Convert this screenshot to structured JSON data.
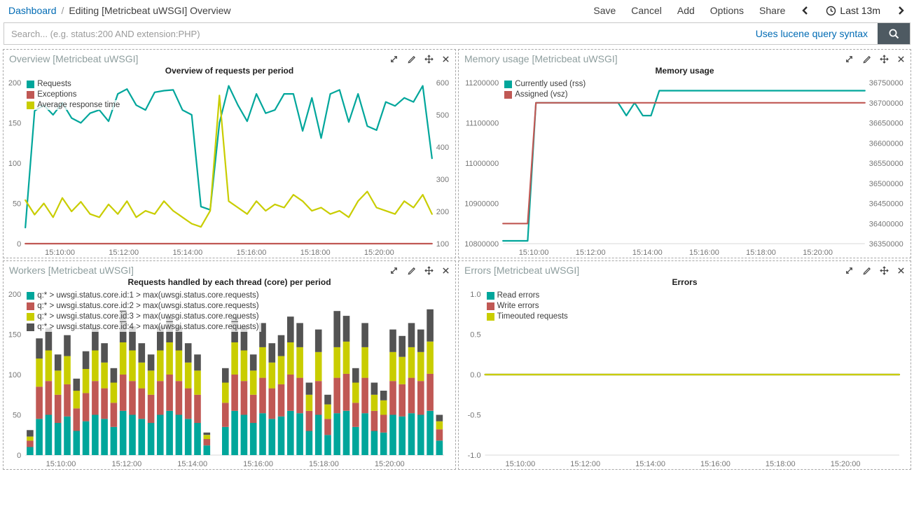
{
  "topbar": {
    "breadcrumb": {
      "root": "Dashboard",
      "separator": "/",
      "current": "Editing [Metricbeat uWSGI] Overview"
    },
    "menu": [
      "Save",
      "Cancel",
      "Add",
      "Options",
      "Share"
    ],
    "time_picker": {
      "label": "Last 13m"
    }
  },
  "search": {
    "placeholder": "Search... (e.g. status:200 AND extension:PHP)",
    "syntax_label": "Uses lucene query syntax"
  },
  "colors": {
    "teal": "#00A69B",
    "red": "#C05854",
    "yellow": "#C9CD00",
    "dark": "#535353",
    "link_blue": "#006BB4",
    "search_button_bg": "#4E5A62",
    "panel_title": "#8e9e9e"
  },
  "chart_data": [
    {
      "panel_title": "Overview [Metricbeat uWSGI]",
      "title": "Overview of requests per period",
      "type": "line",
      "left_axis": {
        "min": 0,
        "max": 200,
        "ticks": [
          {
            "v": 0,
            "label": "0"
          },
          {
            "v": 50,
            "label": "50"
          },
          {
            "v": 100,
            "label": "100"
          },
          {
            "v": 150,
            "label": "150"
          },
          {
            "v": 200,
            "label": "200"
          }
        ]
      },
      "right_axis": {
        "min": 100,
        "max": 600,
        "ticks": [
          {
            "v": 100,
            "label": "100"
          },
          {
            "v": 200,
            "label": "200"
          },
          {
            "v": 300,
            "label": "300"
          },
          {
            "v": 400,
            "label": "400"
          },
          {
            "v": 500,
            "label": "500"
          },
          {
            "v": 600,
            "label": "600"
          }
        ]
      },
      "x_ticks": [
        {
          "pos": 0.085,
          "label": "15:10:00"
        },
        {
          "pos": 0.242,
          "label": "15:12:00"
        },
        {
          "pos": 0.399,
          "label": "15:14:00"
        },
        {
          "pos": 0.556,
          "label": "15:16:00"
        },
        {
          "pos": 0.713,
          "label": "15:18:00"
        },
        {
          "pos": 0.87,
          "label": "15:20:00"
        }
      ],
      "series": [
        {
          "name": "Requests",
          "color": "#00A69B",
          "axis": "left",
          "values": [
            20,
            165,
            172,
            160,
            175,
            156,
            150,
            162,
            166,
            152,
            186,
            192,
            172,
            166,
            188,
            190,
            191,
            166,
            160,
            46,
            42,
            150,
            196,
            172,
            152,
            186,
            162,
            166,
            186,
            186,
            140,
            181,
            131,
            186,
            191,
            151,
            186,
            146,
            141,
            176,
            171,
            181,
            176,
            196,
            106
          ]
        },
        {
          "name": "Exceptions",
          "color": "#C05854",
          "axis": "left",
          "values": [
            0,
            0,
            0,
            0,
            0,
            0,
            0,
            0,
            0,
            0,
            0,
            0,
            0,
            0,
            0,
            0,
            0,
            0,
            0,
            0,
            0,
            0,
            0,
            0,
            0,
            0,
            0,
            0,
            0,
            0,
            0,
            0,
            0,
            0,
            0,
            0,
            0,
            0,
            0,
            0,
            0,
            0,
            0,
            0,
            0
          ]
        },
        {
          "name": "Average response time",
          "color": "#C9CD00",
          "axis": "right",
          "values": [
            235,
            190,
            225,
            182,
            242,
            200,
            230,
            192,
            182,
            222,
            192,
            232,
            182,
            202,
            192,
            232,
            202,
            182,
            162,
            152,
            202,
            560,
            232,
            212,
            192,
            232,
            202,
            222,
            212,
            252,
            232,
            202,
            212,
            192,
            202,
            182,
            232,
            262,
            212,
            202,
            192,
            232,
            212,
            252,
            192
          ]
        }
      ]
    },
    {
      "panel_title": "Memory usage [Metricbeat uWSGI]",
      "title": "Memory usage",
      "type": "line",
      "left_axis": {
        "min": 10800000,
        "max": 11200000,
        "ticks": [
          {
            "v": 10800000,
            "label": "10800000"
          },
          {
            "v": 10900000,
            "label": "10900000"
          },
          {
            "v": 11000000,
            "label": "11000000"
          },
          {
            "v": 11100000,
            "label": "11100000"
          },
          {
            "v": 11200000,
            "label": "11200000"
          }
        ]
      },
      "right_axis": {
        "min": 36350000,
        "max": 36750000,
        "ticks": [
          {
            "v": 36350000,
            "label": "36350000"
          },
          {
            "v": 36400000,
            "label": "36400000"
          },
          {
            "v": 36450000,
            "label": "36450000"
          },
          {
            "v": 36500000,
            "label": "36500000"
          },
          {
            "v": 36550000,
            "label": "36550000"
          },
          {
            "v": 36600000,
            "label": "36600000"
          },
          {
            "v": 36650000,
            "label": "36650000"
          },
          {
            "v": 36700000,
            "label": "36700000"
          },
          {
            "v": 36750000,
            "label": "36750000"
          }
        ]
      },
      "x_ticks": [
        {
          "pos": 0.085,
          "label": "15:10:00"
        },
        {
          "pos": 0.242,
          "label": "15:12:00"
        },
        {
          "pos": 0.399,
          "label": "15:14:00"
        },
        {
          "pos": 0.556,
          "label": "15:16:00"
        },
        {
          "pos": 0.713,
          "label": "15:18:00"
        },
        {
          "pos": 0.87,
          "label": "15:20:00"
        }
      ],
      "series": [
        {
          "name": "Currently used (rss)",
          "color": "#00A69B",
          "axis": "left",
          "values": [
            10807000,
            10807000,
            10807000,
            10807000,
            11150000,
            11150000,
            11150000,
            11150000,
            11150000,
            11150000,
            11150000,
            11150000,
            11150000,
            11150000,
            11150000,
            11118000,
            11150000,
            11118000,
            11118000,
            11180000,
            11180000,
            11180000,
            11180000,
            11180000,
            11180000,
            11180000,
            11180000,
            11180000,
            11180000,
            11180000,
            11180000,
            11180000,
            11180000,
            11180000,
            11180000,
            11180000,
            11180000,
            11180000,
            11180000,
            11180000,
            11180000,
            11180000,
            11180000,
            11180000,
            11180000
          ]
        },
        {
          "name": "Assigned (vsz)",
          "color": "#C05854",
          "axis": "right",
          "values": [
            36400000,
            36400000,
            36400000,
            36400000,
            36700000,
            36700000,
            36700000,
            36700000,
            36700000,
            36700000,
            36700000,
            36700000,
            36700000,
            36700000,
            36700000,
            36700000,
            36700000,
            36700000,
            36700000,
            36700000,
            36700000,
            36700000,
            36700000,
            36700000,
            36700000,
            36700000,
            36700000,
            36700000,
            36700000,
            36700000,
            36700000,
            36700000,
            36700000,
            36700000,
            36700000,
            36700000,
            36700000,
            36700000,
            36700000,
            36700000,
            36700000,
            36700000,
            36700000,
            36700000,
            36700000
          ]
        }
      ]
    },
    {
      "panel_title": "Workers [Metricbeat uWSGI]",
      "title": "Requests handled by each thread (core) per period",
      "type": "bar",
      "left_axis": {
        "min": 0,
        "max": 200,
        "ticks": [
          {
            "v": 0,
            "label": "0"
          },
          {
            "v": 50,
            "label": "50"
          },
          {
            "v": 100,
            "label": "100"
          },
          {
            "v": 150,
            "label": "150"
          },
          {
            "v": 200,
            "label": "200"
          }
        ]
      },
      "right_axis": null,
      "x_ticks": [
        {
          "pos": 0.085,
          "label": "15:10:00"
        },
        {
          "pos": 0.242,
          "label": "15:12:00"
        },
        {
          "pos": 0.399,
          "label": "15:14:00"
        },
        {
          "pos": 0.556,
          "label": "15:16:00"
        },
        {
          "pos": 0.713,
          "label": "15:18:00"
        },
        {
          "pos": 0.87,
          "label": "15:20:00"
        }
      ],
      "series": [
        {
          "name": "q:* > uwsgi.status.core.id:1 > max(uwsgi.status.core.requests)",
          "color": "#00A69B",
          "axis": "left",
          "values": [
            10,
            45,
            50,
            40,
            48,
            30,
            42,
            50,
            45,
            35,
            55,
            50,
            45,
            40,
            50,
            55,
            50,
            45,
            40,
            12,
            0,
            35,
            55,
            50,
            40,
            52,
            45,
            48,
            55,
            52,
            30,
            50,
            25,
            52,
            55,
            35,
            52,
            30,
            28,
            50,
            48,
            52,
            50,
            55,
            18
          ]
        },
        {
          "name": "q:* > uwsgi.status.core.id:2 > max(uwsgi.status.core.requests)",
          "color": "#C05854",
          "axis": "left",
          "values": [
            8,
            40,
            42,
            35,
            40,
            28,
            35,
            42,
            38,
            30,
            45,
            42,
            38,
            35,
            42,
            45,
            42,
            38,
            35,
            8,
            0,
            30,
            45,
            42,
            35,
            44,
            38,
            40,
            45,
            44,
            25,
            42,
            20,
            44,
            46,
            30,
            44,
            25,
            22,
            42,
            40,
            44,
            42,
            46,
            14
          ]
        },
        {
          "name": "q:* > uwsgi.status.core.id:3 > max(uwsgi.status.core.requests)",
          "color": "#C9CD00",
          "axis": "left",
          "values": [
            5,
            35,
            38,
            30,
            35,
            22,
            30,
            38,
            32,
            25,
            40,
            38,
            32,
            30,
            38,
            40,
            38,
            32,
            30,
            5,
            0,
            25,
            40,
            38,
            30,
            38,
            32,
            35,
            40,
            38,
            20,
            36,
            18,
            38,
            40,
            25,
            38,
            20,
            18,
            36,
            34,
            38,
            36,
            40,
            10
          ]
        },
        {
          "name": "q:* > uwsgi.status.core.id:4 > max(uwsgi.status.core.requests)",
          "color": "#535353",
          "axis": "left",
          "values": [
            8,
            25,
            28,
            20,
            26,
            15,
            22,
            28,
            24,
            18,
            40,
            30,
            24,
            20,
            30,
            32,
            30,
            24,
            20,
            3,
            0,
            18,
            32,
            30,
            20,
            30,
            24,
            26,
            32,
            30,
            15,
            28,
            12,
            45,
            32,
            18,
            30,
            15,
            12,
            28,
            26,
            30,
            28,
            40,
            8
          ]
        }
      ]
    },
    {
      "panel_title": "Errors [Metricbeat uWSGI]",
      "title": "Errors",
      "type": "line",
      "left_axis": {
        "min": -1,
        "max": 1,
        "ticks": [
          {
            "v": -1,
            "label": "-1.0"
          },
          {
            "v": -0.5,
            "label": "-0.5"
          },
          {
            "v": 0,
            "label": "0.0"
          },
          {
            "v": 0.5,
            "label": "0.5"
          },
          {
            "v": 1,
            "label": "1.0"
          }
        ]
      },
      "right_axis": null,
      "x_ticks": [
        {
          "pos": 0.085,
          "label": "15:10:00"
        },
        {
          "pos": 0.242,
          "label": "15:12:00"
        },
        {
          "pos": 0.399,
          "label": "15:14:00"
        },
        {
          "pos": 0.556,
          "label": "15:16:00"
        },
        {
          "pos": 0.713,
          "label": "15:18:00"
        },
        {
          "pos": 0.87,
          "label": "15:20:00"
        }
      ],
      "series": [
        {
          "name": "Read errors",
          "color": "#00A69B",
          "axis": "left",
          "values": [
            0,
            0
          ]
        },
        {
          "name": "Write errors",
          "color": "#C05854",
          "axis": "left",
          "values": [
            0,
            0
          ]
        },
        {
          "name": "Timeouted requests",
          "color": "#C9CD00",
          "axis": "left",
          "values": [
            0,
            0
          ]
        }
      ]
    }
  ]
}
